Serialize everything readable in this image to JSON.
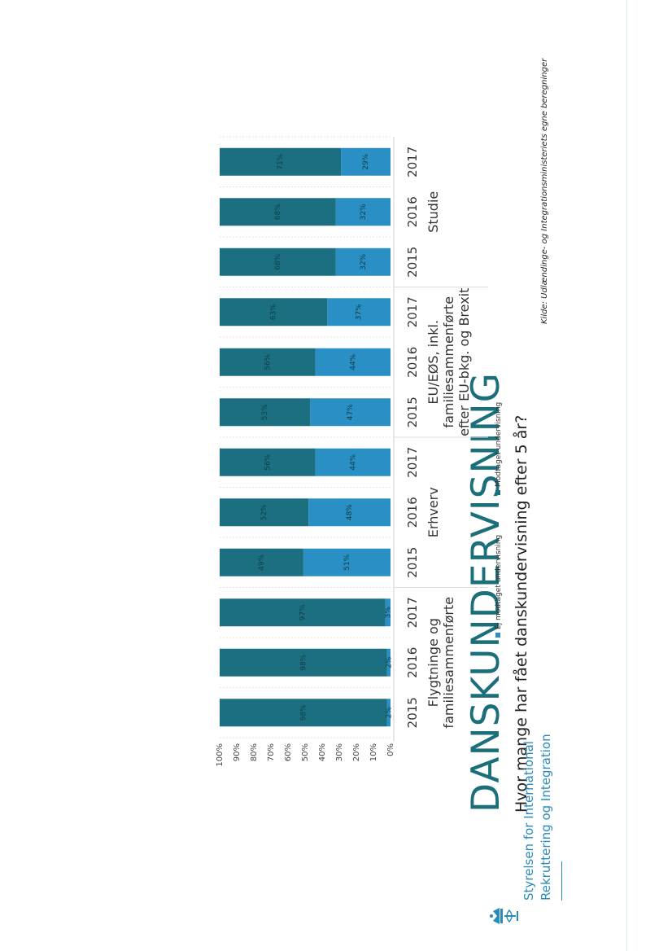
{
  "chart_data": {
    "type": "bar",
    "stacked": true,
    "title": "DANSKUNDERVISNING",
    "subtitle": "Hvor mange har fået danskundervisning efter 5 år?",
    "categories": [
      "2015",
      "2016",
      "2017",
      "2015",
      "2016",
      "2017",
      "2015",
      "2016",
      "2017",
      "2015",
      "2016",
      "2017"
    ],
    "groups": [
      {
        "name": [
          "Flygtninge og",
          "familiesammenførte"
        ],
        "indices": [
          0,
          1,
          2
        ]
      },
      {
        "name": [
          "Erhverv"
        ],
        "indices": [
          3,
          4,
          5
        ]
      },
      {
        "name": [
          "EU/EØS, inkl.",
          "familiesammenførte",
          "efter EU-bkg. og Brexit"
        ],
        "indices": [
          6,
          7,
          8
        ]
      },
      {
        "name": [
          "Studie"
        ],
        "indices": [
          9,
          10,
          11
        ]
      }
    ],
    "series": [
      {
        "name": "Ej modtaget undervisning",
        "color": "#2a8fc4",
        "values": [
          2,
          2,
          3,
          51,
          48,
          44,
          47,
          44,
          37,
          32,
          32,
          29
        ],
        "labels": [
          "2%",
          "2%",
          "3%",
          "51%",
          "48%",
          "44%",
          "47%",
          "44%",
          "37%",
          "32%",
          "32%",
          "29%"
        ]
      },
      {
        "name": "Modtaget undervisning",
        "color": "#1c6f80",
        "values": [
          98,
          98,
          97,
          49,
          52,
          56,
          53,
          56,
          63,
          68,
          68,
          71
        ],
        "labels": [
          "98%",
          "98%",
          "97%",
          "49%",
          "52%",
          "56%",
          "53%",
          "56%",
          "63%",
          "68%",
          "68%",
          "71%"
        ]
      }
    ],
    "yticks": [
      "0%",
      "10%",
      "20%",
      "30%",
      "40%",
      "50%",
      "60%",
      "70%",
      "80%",
      "90%",
      "100%"
    ],
    "ylim": [
      0,
      100
    ],
    "legend_position": "bottom"
  },
  "org": {
    "line1": "Styrelsen for International",
    "line2": "Rekruttering og Integration"
  },
  "source": "Kilde: Udlændinge- og Integrationsministeriets egne beregninger"
}
